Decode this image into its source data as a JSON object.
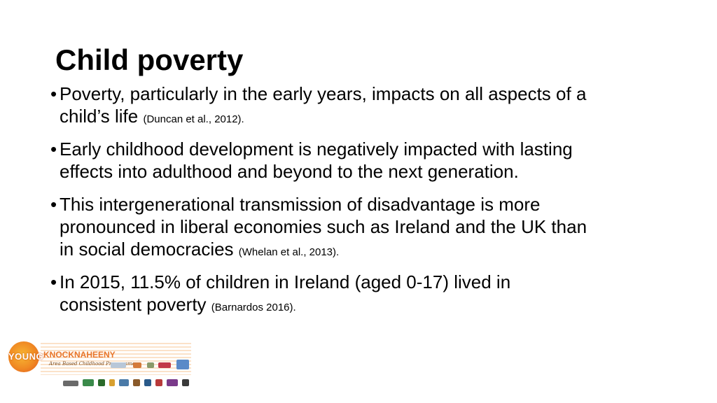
{
  "slide": {
    "title": "Child poverty",
    "bullet_marker": "•",
    "bullets": [
      {
        "text": "Poverty, particularly in the early years, impacts on all aspects of a child’s  life ",
        "citation": "(Duncan et al., 2012)."
      },
      {
        "text": "Early childhood development is negatively impacted with lasting effects into adulthood and beyond to the next generation.",
        "citation": ""
      },
      {
        "text": "This intergenerational transmission of disadvantage is more pronounced in liberal economies such as Ireland and the UK than in social democracies ",
        "citation": "(Whelan et al., 2013)."
      },
      {
        "text": "In 2015, 11.5% of children in Ireland (aged 0-17) lived in consistent poverty ",
        "citation": "(Barnardos 2016)."
      }
    ]
  },
  "logo": {
    "young": "YOUNG",
    "name": "KNOCKNAHEENY",
    "tagline": "Area Based Childhood Programme",
    "colors": {
      "sun": "#f08a24",
      "name": "#e8762b"
    }
  }
}
